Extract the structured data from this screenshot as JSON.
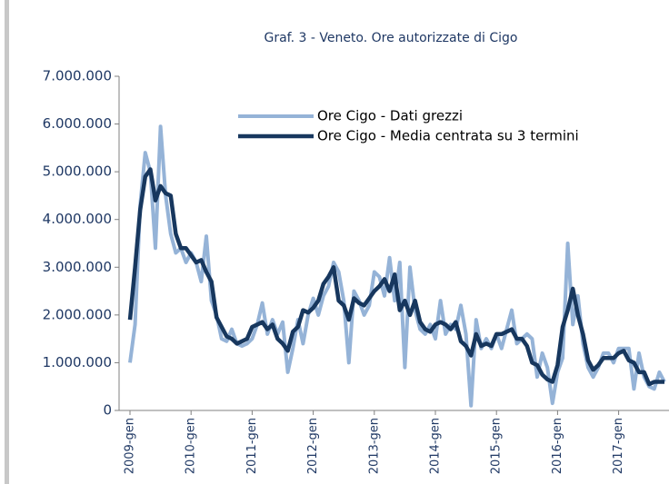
{
  "chart_data": {
    "type": "line",
    "title": "Graf. 3 - Veneto. Ore autorizzate di Cigo",
    "categories": [
      "2009-gen",
      null,
      null,
      null,
      null,
      null,
      null,
      null,
      null,
      null,
      null,
      null,
      "2010-gen",
      null,
      null,
      null,
      null,
      null,
      null,
      null,
      null,
      null,
      null,
      null,
      "2011-gen",
      null,
      null,
      null,
      null,
      null,
      null,
      null,
      null,
      null,
      null,
      null,
      "2012-gen",
      null,
      null,
      null,
      null,
      null,
      null,
      null,
      null,
      null,
      null,
      null,
      "2013-gen",
      null,
      null,
      null,
      null,
      null,
      null,
      null,
      null,
      null,
      null,
      null,
      "2014-gen",
      null,
      null,
      null,
      null,
      null,
      null,
      null,
      null,
      null,
      null,
      null,
      "2015-gen",
      null,
      null,
      null,
      null,
      null,
      null,
      null,
      null,
      null,
      null,
      null,
      "2016-gen",
      null,
      null,
      null,
      null,
      null,
      null,
      null,
      null,
      null,
      null,
      null,
      "2017-gen",
      null,
      null,
      null,
      null,
      null,
      null,
      null,
      null,
      null
    ],
    "series": [
      {
        "name": "Ore Cigo - Dati grezzi",
        "color": "#95b3d7",
        "width": 4,
        "values": [
          1000000,
          1800000,
          4300000,
          5400000,
          5000000,
          3400000,
          5950000,
          4500000,
          3700000,
          3300000,
          3400000,
          3100000,
          3300000,
          3100000,
          2700000,
          3650000,
          2300000,
          2000000,
          1500000,
          1450000,
          1700000,
          1400000,
          1350000,
          1400000,
          1500000,
          1800000,
          2250000,
          1600000,
          1900000,
          1600000,
          1850000,
          800000,
          1300000,
          1900000,
          1400000,
          2000000,
          2350000,
          2000000,
          2400000,
          2600000,
          3100000,
          2900000,
          2300000,
          1000000,
          2500000,
          2300000,
          2000000,
          2200000,
          2900000,
          2800000,
          2400000,
          3200000,
          2300000,
          3100000,
          900000,
          3000000,
          2100000,
          1700000,
          1600000,
          1800000,
          1500000,
          2300000,
          1600000,
          1800000,
          1700000,
          2200000,
          1600000,
          100000,
          1900000,
          1300000,
          1500000,
          1300000,
          1600000,
          1300000,
          1700000,
          2100000,
          1400000,
          1500000,
          1600000,
          1500000,
          700000,
          1200000,
          900000,
          150000,
          800000,
          1100000,
          3500000,
          1800000,
          2400000,
          1400000,
          900000,
          700000,
          900000,
          1200000,
          1200000,
          1000000,
          1300000,
          1300000,
          1300000,
          450000,
          1200000,
          700000,
          500000,
          450000,
          800000,
          600000
        ]
      },
      {
        "name": "Ore Cigo - Media centrata su 3 termini",
        "color": "#17375e",
        "width": 4.5,
        "values": [
          1900000,
          3000000,
          4200000,
          4900000,
          5050000,
          4400000,
          4700000,
          4550000,
          4500000,
          3700000,
          3400000,
          3400000,
          3250000,
          3100000,
          3150000,
          2900000,
          2700000,
          1950000,
          1750000,
          1550000,
          1500000,
          1400000,
          1450000,
          1500000,
          1750000,
          1800000,
          1850000,
          1700000,
          1800000,
          1500000,
          1400000,
          1250000,
          1650000,
          1750000,
          2100000,
          2050000,
          2150000,
          2300000,
          2650000,
          2800000,
          3000000,
          2300000,
          2200000,
          1900000,
          2350000,
          2250000,
          2200000,
          2350000,
          2500000,
          2600000,
          2750000,
          2500000,
          2850000,
          2100000,
          2300000,
          2000000,
          2300000,
          1850000,
          1700000,
          1650000,
          1800000,
          1850000,
          1800000,
          1700000,
          1850000,
          1450000,
          1350000,
          1150000,
          1600000,
          1350000,
          1400000,
          1350000,
          1600000,
          1600000,
          1650000,
          1700000,
          1500000,
          1500000,
          1350000,
          1000000,
          950000,
          750000,
          650000,
          600000,
          950000,
          1750000,
          2100000,
          2550000,
          2000000,
          1600000,
          1050000,
          850000,
          950000,
          1100000,
          1100000,
          1100000,
          1200000,
          1250000,
          1050000,
          1000000,
          800000,
          800000,
          550000,
          600000,
          600000,
          600000
        ]
      }
    ],
    "ylim": [
      0,
      7000000
    ],
    "yticks": [
      0,
      {
        "value": 1000000,
        "label": "1.000.000"
      },
      {
        "value": 2000000,
        "label": "2.000.000"
      },
      {
        "value": 3000000,
        "label": "3.000.000"
      },
      {
        "value": 4000000,
        "label": "4.000.000"
      },
      {
        "value": 5000000,
        "label": "5.000.000"
      },
      {
        "value": 6000000,
        "label": "6.000.000"
      },
      {
        "value": 7000000,
        "label": "7.000.000"
      }
    ],
    "grid": false,
    "legend": "top-right"
  }
}
